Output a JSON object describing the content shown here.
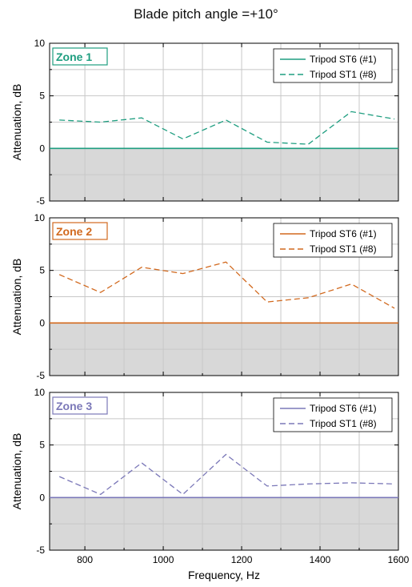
{
  "title": "Blade pitch angle =+10°",
  "xlabel": "Frequency, Hz",
  "chart_data": [
    {
      "type": "line",
      "title": "Zone 1",
      "ylabel": "Attenuation, dB",
      "xlabel": "",
      "xlim": [
        710,
        1600
      ],
      "ylim": [
        -5,
        10
      ],
      "xticks": [
        800,
        1000,
        1200,
        1400,
        1600
      ],
      "yticks": [
        -5,
        0,
        5,
        10
      ],
      "color": "#1f9e80",
      "shaded_below_zero": true,
      "grid": true,
      "legend": "top-right",
      "x": [
        735,
        840,
        945,
        1050,
        1160,
        1265,
        1370,
        1480,
        1590
      ],
      "series": [
        {
          "name": "Tripod ST6 (#1)",
          "style": "solid",
          "values": [
            0,
            0,
            0,
            0,
            0,
            0,
            0,
            0,
            0
          ]
        },
        {
          "name": "Tripod ST1 (#8)",
          "style": "dashed",
          "values": [
            2.7,
            2.5,
            2.9,
            0.9,
            2.7,
            0.6,
            0.4,
            3.5,
            2.8
          ]
        }
      ]
    },
    {
      "type": "line",
      "title": "Zone 2",
      "ylabel": "Attenuation, dB",
      "xlabel": "",
      "xlim": [
        710,
        1600
      ],
      "ylim": [
        -5,
        10
      ],
      "xticks": [
        800,
        1000,
        1200,
        1400,
        1600
      ],
      "yticks": [
        -5,
        0,
        5,
        10
      ],
      "color": "#d2691e",
      "shaded_below_zero": true,
      "grid": true,
      "legend": "top-right",
      "x": [
        735,
        840,
        945,
        1050,
        1160,
        1265,
        1370,
        1480,
        1590
      ],
      "series": [
        {
          "name": "Tripod ST6 (#1)",
          "style": "solid",
          "values": [
            0,
            0,
            0,
            0,
            0,
            0,
            0,
            0,
            0
          ]
        },
        {
          "name": "Tripod ST1 (#8)",
          "style": "dashed",
          "values": [
            4.6,
            2.9,
            5.3,
            4.7,
            5.8,
            2.0,
            2.4,
            3.7,
            1.4
          ]
        }
      ]
    },
    {
      "type": "line",
      "title": "Zone 3",
      "ylabel": "Attenuation, dB",
      "xlabel": "Frequency, Hz",
      "xlim": [
        710,
        1600
      ],
      "ylim": [
        -5,
        10
      ],
      "xticks": [
        800,
        1000,
        1200,
        1400,
        1600
      ],
      "yticks": [
        -5,
        0,
        5,
        10
      ],
      "color": "#7b78b8",
      "shaded_below_zero": true,
      "grid": true,
      "legend": "top-right",
      "x": [
        735,
        840,
        945,
        1050,
        1160,
        1265,
        1370,
        1480,
        1590
      ],
      "series": [
        {
          "name": "Tripod ST6 (#1)",
          "style": "solid",
          "values": [
            0,
            0,
            0,
            0,
            0,
            0,
            0,
            0,
            0
          ]
        },
        {
          "name": "Tripod ST1 (#8)",
          "style": "dashed",
          "values": [
            2.0,
            0.3,
            3.3,
            0.3,
            4.1,
            1.1,
            1.3,
            1.4,
            1.3
          ]
        }
      ]
    }
  ]
}
